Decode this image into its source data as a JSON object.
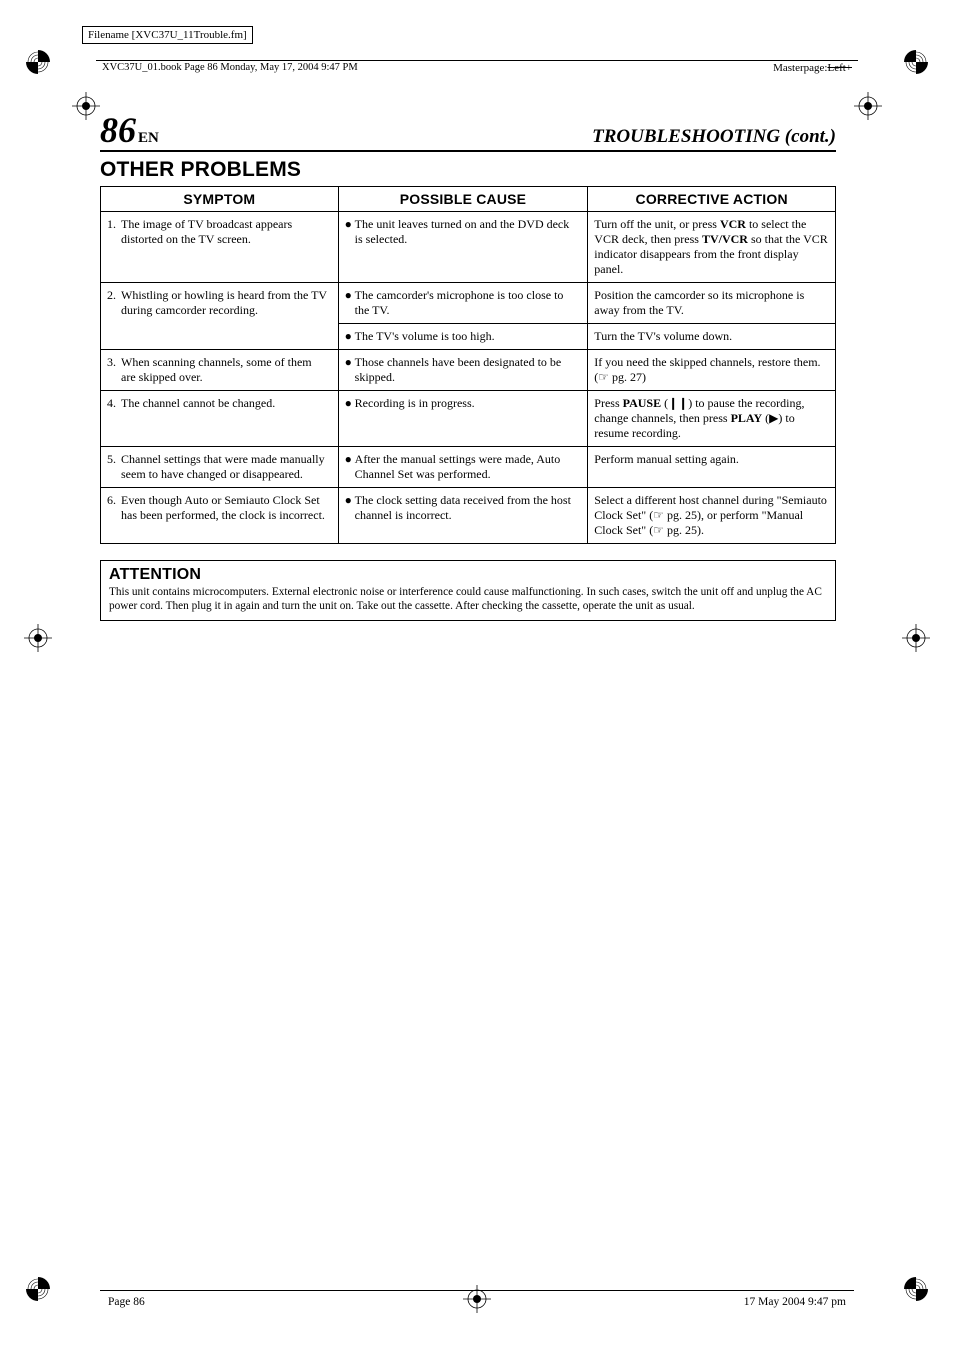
{
  "filename_label": "Filename [XVC37U_11Trouble.fm]",
  "bookpage": "XVC37U_01.book  Page 86  Monday, May 17, 2004  9:47 PM",
  "masterpage_label": "Masterpage:",
  "masterpage_value": "Left+",
  "page_number": "86",
  "page_lang": "EN",
  "section_title": "TROUBLESHOOTING (cont.)",
  "heading": "OTHER PROBLEMS",
  "columns": {
    "symptom": "SYMPTOM",
    "cause": "POSSIBLE CAUSE",
    "action": "CORRECTIVE ACTION"
  },
  "rows": [
    {
      "num": "1.",
      "symptom": "The image of TV broadcast appears distorted on the TV screen.",
      "cause": "The unit leaves turned on and the DVD deck is selected.",
      "action": "Turn off the unit, or press <b>VCR</b> to select the VCR deck, then press <b>TV/VCR</b> so that the VCR indicator disappears from the front display panel."
    },
    {
      "num": "2.",
      "symptom": "Whistling or howling is heard from the TV during camcorder recording.",
      "cause": "The camcorder's microphone is too close to the TV.",
      "action": "Position the camcorder so its microphone is away from the TV."
    },
    {
      "num": "",
      "symptom": "",
      "cause": "The TV's volume is too high.",
      "action": "Turn the TV's volume down."
    },
    {
      "num": "3.",
      "symptom": "When scanning channels, some of them are skipped over.",
      "cause": "Those channels have been designated to be skipped.",
      "action": "If you need the skipped channels, restore them. (☞ pg. 27)"
    },
    {
      "num": "4.",
      "symptom": "The channel cannot be changed.",
      "cause": "Recording is in progress.",
      "action": "Press <b>PAUSE</b> (❙❙) to pause the recording, change channels, then press <b>PLAY</b> (▶) to resume recording."
    },
    {
      "num": "5.",
      "symptom": "Channel settings that were made manually seem to have changed or disappeared.",
      "cause": "After the manual settings were made, Auto Channel Set was performed.",
      "action": "Perform manual setting again."
    },
    {
      "num": "6.",
      "symptom": "Even though Auto or Semiauto Clock Set has been performed, the clock is incorrect.",
      "cause": "The clock setting data received from the host channel is incorrect.",
      "action": "Select a different host channel during \"Semiauto Clock Set\" (☞ pg. 25), or perform \"Manual Clock Set\" (☞ pg. 25)."
    }
  ],
  "attention_title": "ATTENTION",
  "attention_body": "This unit contains microcomputers. External electronic noise or interference could cause malfunctioning. In such cases, switch the unit off and unplug the AC power cord. Then plug it in again and turn the unit on. Take out the cassette. After checking the cassette, operate the unit as usual.",
  "footer_left": "Page 86",
  "footer_right": "17 May 2004 9:47 pm"
}
